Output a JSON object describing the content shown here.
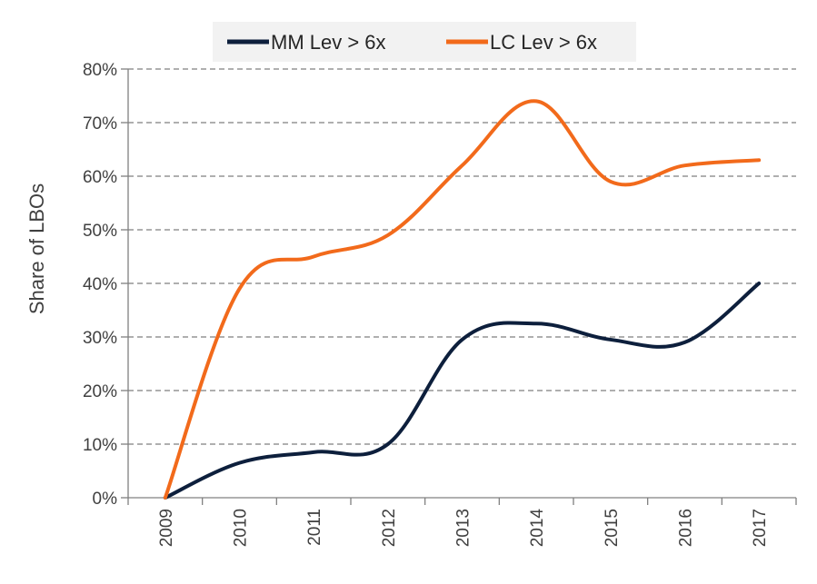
{
  "chart_data": {
    "type": "line",
    "title": "",
    "xlabel": "",
    "ylabel": "Share of  LBOs",
    "x": [
      "2009",
      "2010",
      "2011",
      "2012",
      "2013",
      "2014",
      "2015",
      "2016",
      "2017"
    ],
    "ylim": [
      0,
      80
    ],
    "yticks": [
      0,
      10,
      20,
      30,
      40,
      50,
      60,
      70,
      80
    ],
    "ytick_labels": [
      "0%",
      "10%",
      "20%",
      "30%",
      "40%",
      "50%",
      "60%",
      "70%",
      "80%"
    ],
    "grid": true,
    "legend_position": "top",
    "series": [
      {
        "name": "MM Lev > 6x",
        "color": "#0d1f3c",
        "values": [
          0,
          6.5,
          8.5,
          10,
          29.5,
          32.5,
          29.5,
          29,
          40
        ]
      },
      {
        "name": "LC Lev > 6x",
        "color": "#f26a1b",
        "values": [
          0,
          39,
          45,
          49,
          62,
          74,
          59,
          62,
          63
        ]
      }
    ]
  }
}
